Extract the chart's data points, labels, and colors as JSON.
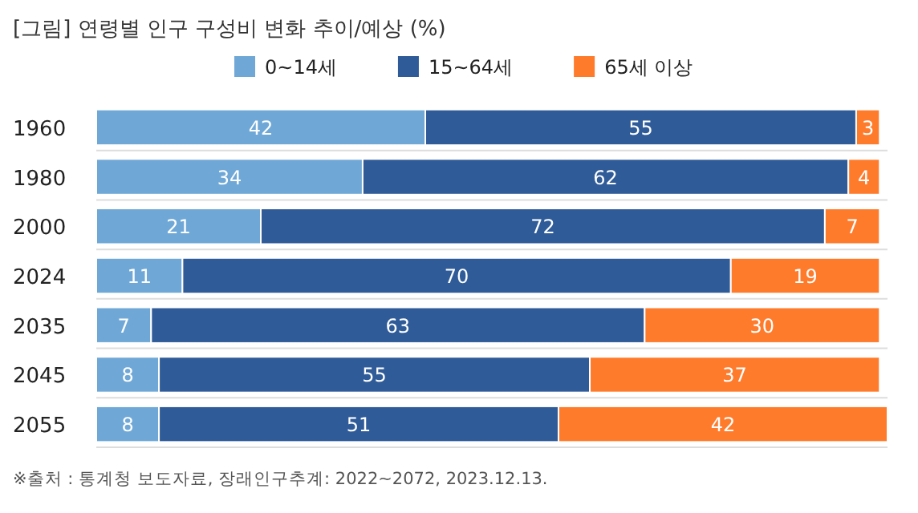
{
  "chart_data": {
    "type": "bar",
    "orientation": "horizontal",
    "stacked": true,
    "data_labels": true,
    "legend": "top",
    "title": "[그림] 연령별 인구 구성비 변화 추이/예상 (%)",
    "annotations": [
      "※출처 : 통계청 보도자료, 장래인구추계: 2022~2072, 2023.12.13."
    ],
    "categories": [
      "1960",
      "1980",
      "2000",
      "2024",
      "2035",
      "2045",
      "2055"
    ],
    "series": [
      {
        "name": "0~14세",
        "color": "#6fa8d6",
        "values": [
          42,
          34,
          21,
          11,
          7,
          8,
          8
        ]
      },
      {
        "name": "15~64세",
        "color": "#2f5b98",
        "values": [
          55,
          62,
          72,
          70,
          63,
          55,
          51
        ]
      },
      {
        "name": "65세 이상",
        "color": "#ff7b2c",
        "values": [
          3,
          4,
          7,
          19,
          30,
          37,
          42
        ]
      }
    ]
  }
}
